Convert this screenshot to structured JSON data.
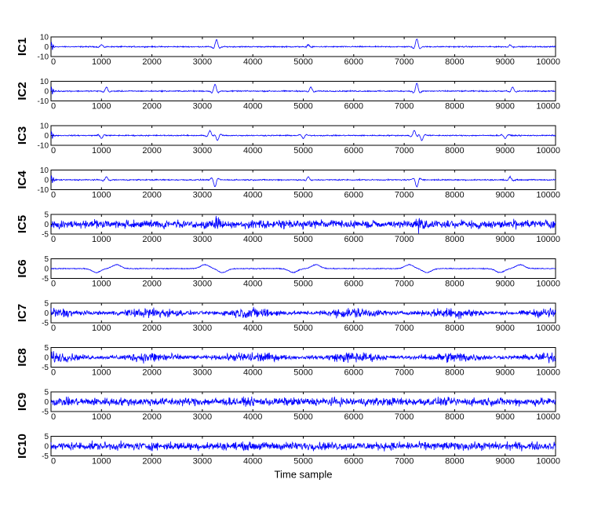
{
  "chart_data": {
    "type": "line",
    "xlabel": "Time sample",
    "xlim": [
      0,
      10000
    ],
    "x_ticks": [
      0,
      1000,
      2000,
      3000,
      4000,
      5000,
      6000,
      7000,
      8000,
      9000,
      10000
    ],
    "x_tick_labels": [
      "0",
      "1000",
      "2000",
      "3000",
      "4000",
      "5000",
      "6000",
      "7000",
      "8000",
      "9000",
      "10000"
    ],
    "line_color": "#0000ff",
    "grid": false,
    "legend": "none",
    "panels": [
      {
        "ylabel": "IC1",
        "ylim": [
          -10,
          10
        ],
        "y_ticks": [
          -10,
          0,
          10
        ],
        "y_tick_labels": [
          "-10",
          "0",
          "10"
        ],
        "peaks": [
          {
            "x": 1000,
            "amp": 2
          },
          {
            "x": 3280,
            "amp": 7
          },
          {
            "x": 5100,
            "amp": 2
          },
          {
            "x": 7250,
            "amp": 8
          },
          {
            "x": 9100,
            "amp": 2
          }
        ]
      },
      {
        "ylabel": "IC2",
        "ylim": [
          -10,
          10
        ],
        "y_ticks": [
          -10,
          0,
          10
        ],
        "y_tick_labels": [
          "-10",
          "0",
          "10"
        ],
        "peaks": [
          {
            "x": 1100,
            "amp": 4
          },
          {
            "x": 3250,
            "amp": 7
          },
          {
            "x": 5150,
            "amp": 4
          },
          {
            "x": 7250,
            "amp": 8
          },
          {
            "x": 9150,
            "amp": 4
          }
        ]
      },
      {
        "ylabel": "IC3",
        "ylim": [
          -10,
          10
        ],
        "y_ticks": [
          -10,
          0,
          10
        ],
        "y_tick_labels": [
          "-10",
          "0",
          "10"
        ],
        "peaks": [
          {
            "x": 1000,
            "amp": -3
          },
          {
            "x": 3150,
            "amp": 5
          },
          {
            "x": 3300,
            "amp": -5
          },
          {
            "x": 5000,
            "amp": -3
          },
          {
            "x": 7200,
            "amp": 5
          },
          {
            "x": 7350,
            "amp": -5
          },
          {
            "x": 9000,
            "amp": -3
          }
        ]
      },
      {
        "ylabel": "IC4",
        "ylim": [
          -10,
          10
        ],
        "y_ticks": [
          -10,
          0,
          10
        ],
        "y_tick_labels": [
          "-10",
          "0",
          "10"
        ],
        "peaks": [
          {
            "x": 1100,
            "amp": 3
          },
          {
            "x": 3250,
            "amp": -7
          },
          {
            "x": 5100,
            "amp": 3
          },
          {
            "x": 7250,
            "amp": -7
          },
          {
            "x": 9100,
            "amp": 3
          }
        ]
      },
      {
        "ylabel": "IC5",
        "ylim": [
          -5,
          5
        ],
        "y_ticks": [
          -5,
          0,
          5
        ],
        "y_tick_labels": [
          "-5",
          "0",
          "5"
        ],
        "peaks": [
          {
            "x": 3300,
            "amp": 4
          },
          {
            "x": 7300,
            "amp": 4
          }
        ]
      },
      {
        "ylabel": "IC6",
        "ylim": [
          -5,
          5
        ],
        "y_ticks": [
          -5,
          0,
          5
        ],
        "y_tick_labels": [
          "-5",
          "0",
          "5"
        ],
        "peaks": [
          {
            "x": 900,
            "amp": -2
          },
          {
            "x": 1300,
            "amp": 2
          },
          {
            "x": 3050,
            "amp": 2
          },
          {
            "x": 3400,
            "amp": -2
          },
          {
            "x": 4800,
            "amp": -2
          },
          {
            "x": 5250,
            "amp": 2
          },
          {
            "x": 7100,
            "amp": 2
          },
          {
            "x": 7450,
            "amp": -2
          },
          {
            "x": 8900,
            "amp": -2
          },
          {
            "x": 9300,
            "amp": 2
          }
        ]
      },
      {
        "ylabel": "IC7",
        "ylim": [
          -5,
          5
        ],
        "y_ticks": [
          -5,
          0,
          5
        ],
        "y_tick_labels": [
          "-5",
          "0",
          "5"
        ],
        "envelope_peaks": [
          0,
          2000,
          4000,
          6000,
          8000,
          10000
        ]
      },
      {
        "ylabel": "IC8",
        "ylim": [
          -5,
          5
        ],
        "y_ticks": [
          -5,
          0,
          5
        ],
        "y_tick_labels": [
          "-5",
          "0",
          "5"
        ],
        "envelope_peaks": [
          0,
          2000,
          4000,
          6000,
          8000,
          10000
        ]
      },
      {
        "ylabel": "IC9",
        "ylim": [
          -5,
          5
        ],
        "y_ticks": [
          -5,
          0,
          5
        ],
        "y_tick_labels": [
          "-5",
          "0",
          "5"
        ],
        "envelope_peaks": []
      },
      {
        "ylabel": "IC10",
        "ylim": [
          -5,
          5
        ],
        "y_ticks": [
          -5,
          0,
          5
        ],
        "y_tick_labels": [
          "-5",
          "0",
          "5"
        ],
        "envelope_peaks": []
      }
    ]
  }
}
